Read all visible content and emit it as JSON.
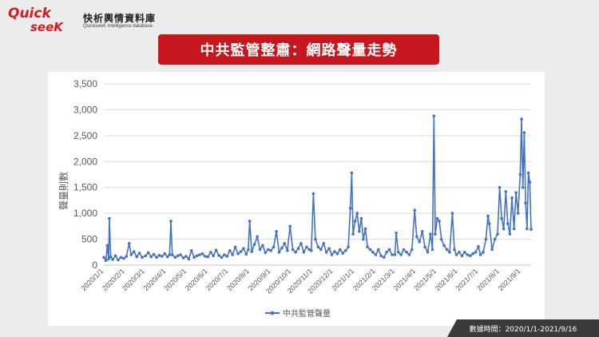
{
  "brand": {
    "logo_text_top": "Quick",
    "logo_text_bottom": "seeK",
    "name": "快析輿情資料庫",
    "subtitle": "QuickseeK intelligence database"
  },
  "title": "中共監管整肅：網路聲量走勢",
  "source": "數據時間：2020/1/1-2021/9/16",
  "colors": {
    "banner": "#c7161e",
    "series": "#4472c4",
    "logo": "#d71920"
  },
  "chart_data": {
    "type": "line",
    "title": "中共監管整肅：網路聲量走勢",
    "ylabel": "聲量則數",
    "xlabel": "",
    "ylim": [
      0,
      3500
    ],
    "y_ticks": [
      "3,500",
      "3,000",
      "2,500",
      "2,000",
      "1,500",
      "1,000",
      "500",
      "0"
    ],
    "x_tick_labels": [
      "2020/1/1",
      "2020/2/1",
      "2020/3/1",
      "2020/4/1",
      "2020/5/1",
      "2020/6/1",
      "2020/7/1",
      "2020/8/1",
      "2020/9/1",
      "2020/10/1",
      "2020/11/1",
      "2020/12/1",
      "2021/1/1",
      "2021/2/1",
      "2021/3/1",
      "2021/4/1",
      "2021/5/1",
      "2021/6/1",
      "2021/7/1",
      "2021/8/1",
      "2021/9/1"
    ],
    "x_range": [
      "2020/1/1",
      "2021/9/16"
    ],
    "grid": true,
    "legend_position": "bottom",
    "series": [
      {
        "name": "中共監管聲量",
        "points": [
          [
            "2020/1/1",
            150
          ],
          [
            "2020/1/4",
            90
          ],
          [
            "2020/1/6",
            380
          ],
          [
            "2020/1/8",
            120
          ],
          [
            "2020/1/9",
            900
          ],
          [
            "2020/1/11",
            160
          ],
          [
            "2020/1/14",
            110
          ],
          [
            "2020/1/18",
            180
          ],
          [
            "2020/1/22",
            100
          ],
          [
            "2020/1/26",
            150
          ],
          [
            "2020/1/30",
            130
          ],
          [
            "2020/2/3",
            170
          ],
          [
            "2020/2/7",
            420
          ],
          [
            "2020/2/10",
            200
          ],
          [
            "2020/2/14",
            260
          ],
          [
            "2020/2/18",
            160
          ],
          [
            "2020/2/22",
            230
          ],
          [
            "2020/2/26",
            150
          ],
          [
            "2020/3/2",
            180
          ],
          [
            "2020/3/6",
            240
          ],
          [
            "2020/3/10",
            160
          ],
          [
            "2020/3/14",
            210
          ],
          [
            "2020/3/18",
            150
          ],
          [
            "2020/3/22",
            190
          ],
          [
            "2020/3/26",
            170
          ],
          [
            "2020/3/30",
            220
          ],
          [
            "2020/4/3",
            160
          ],
          [
            "2020/4/6",
            200
          ],
          [
            "2020/4/8",
            850
          ],
          [
            "2020/4/10",
            200
          ],
          [
            "2020/4/14",
            150
          ],
          [
            "2020/4/18",
            180
          ],
          [
            "2020/4/22",
            200
          ],
          [
            "2020/4/26",
            140
          ],
          [
            "2020/4/30",
            170
          ],
          [
            "2020/5/4",
            120
          ],
          [
            "2020/5/8",
            280
          ],
          [
            "2020/5/12",
            150
          ],
          [
            "2020/5/16",
            180
          ],
          [
            "2020/5/20",
            200
          ],
          [
            "2020/5/24",
            220
          ],
          [
            "2020/5/28",
            170
          ],
          [
            "2020/6/1",
            160
          ],
          [
            "2020/6/5",
            250
          ],
          [
            "2020/6/9",
            180
          ],
          [
            "2020/6/13",
            290
          ],
          [
            "2020/6/17",
            190
          ],
          [
            "2020/6/21",
            150
          ],
          [
            "2020/6/25",
            200
          ],
          [
            "2020/6/29",
            170
          ],
          [
            "2020/7/3",
            280
          ],
          [
            "2020/7/7",
            200
          ],
          [
            "2020/7/11",
            350
          ],
          [
            "2020/7/15",
            220
          ],
          [
            "2020/7/19",
            260
          ],
          [
            "2020/7/23",
            320
          ],
          [
            "2020/7/27",
            210
          ],
          [
            "2020/7/30",
            300
          ],
          [
            "2020/8/1",
            850
          ],
          [
            "2020/8/4",
            260
          ],
          [
            "2020/8/8",
            400
          ],
          [
            "2020/8/12",
            550
          ],
          [
            "2020/8/16",
            300
          ],
          [
            "2020/8/20",
            380
          ],
          [
            "2020/8/24",
            240
          ],
          [
            "2020/8/28",
            300
          ],
          [
            "2020/9/1",
            280
          ],
          [
            "2020/9/5",
            350
          ],
          [
            "2020/9/9",
            650
          ],
          [
            "2020/9/13",
            250
          ],
          [
            "2020/9/17",
            330
          ],
          [
            "2020/9/21",
            420
          ],
          [
            "2020/9/25",
            280
          ],
          [
            "2020/9/29",
            750
          ],
          [
            "2020/10/3",
            300
          ],
          [
            "2020/10/7",
            250
          ],
          [
            "2020/10/11",
            320
          ],
          [
            "2020/10/15",
            420
          ],
          [
            "2020/10/19",
            250
          ],
          [
            "2020/10/23",
            350
          ],
          [
            "2020/10/27",
            300
          ],
          [
            "2020/10/30",
            280
          ],
          [
            "2020/11/2",
            1380
          ],
          [
            "2020/11/5",
            500
          ],
          [
            "2020/11/9",
            350
          ],
          [
            "2020/11/13",
            300
          ],
          [
            "2020/11/17",
            420
          ],
          [
            "2020/11/21",
            250
          ],
          [
            "2020/11/25",
            320
          ],
          [
            "2020/11/29",
            200
          ],
          [
            "2020/12/3",
            260
          ],
          [
            "2020/12/7",
            220
          ],
          [
            "2020/12/11",
            300
          ],
          [
            "2020/12/15",
            230
          ],
          [
            "2020/12/19",
            280
          ],
          [
            "2020/12/23",
            350
          ],
          [
            "2020/12/26",
            1100
          ],
          [
            "2020/12/28",
            1780
          ],
          [
            "2020/12/30",
            600
          ],
          [
            "2021/1/2",
            850
          ],
          [
            "2021/1/5",
            1000
          ],
          [
            "2021/1/8",
            650
          ],
          [
            "2021/1/11",
            900
          ],
          [
            "2021/1/14",
            500
          ],
          [
            "2021/1/17",
            700
          ],
          [
            "2021/1/20",
            350
          ],
          [
            "2021/1/24",
            300
          ],
          [
            "2021/1/28",
            250
          ],
          [
            "2021/2/1",
            200
          ],
          [
            "2021/2/5",
            300
          ],
          [
            "2021/2/9",
            180
          ],
          [
            "2021/2/13",
            150
          ],
          [
            "2021/2/17",
            250
          ],
          [
            "2021/2/21",
            300
          ],
          [
            "2021/2/25",
            200
          ],
          [
            "2021/3/1",
            200
          ],
          [
            "2021/3/3",
            620
          ],
          [
            "2021/3/6",
            250
          ],
          [
            "2021/3/10",
            200
          ],
          [
            "2021/3/14",
            300
          ],
          [
            "2021/3/18",
            250
          ],
          [
            "2021/3/22",
            200
          ],
          [
            "2021/3/26",
            300
          ],
          [
            "2021/3/30",
            1060
          ],
          [
            "2021/4/2",
            550
          ],
          [
            "2021/4/6",
            450
          ],
          [
            "2021/4/10",
            650
          ],
          [
            "2021/4/14",
            350
          ],
          [
            "2021/4/18",
            250
          ],
          [
            "2021/4/22",
            600
          ],
          [
            "2021/4/25",
            300
          ],
          [
            "2021/4/27",
            2880
          ],
          [
            "2021/4/29",
            600
          ],
          [
            "2021/5/2",
            900
          ],
          [
            "2021/5/5",
            850
          ],
          [
            "2021/5/8",
            500
          ],
          [
            "2021/5/12",
            380
          ],
          [
            "2021/5/16",
            300
          ],
          [
            "2021/5/20",
            250
          ],
          [
            "2021/5/24",
            1000
          ],
          [
            "2021/5/27",
            300
          ],
          [
            "2021/5/30",
            200
          ],
          [
            "2021/6/3",
            250
          ],
          [
            "2021/6/7",
            180
          ],
          [
            "2021/6/11",
            250
          ],
          [
            "2021/6/15",
            200
          ],
          [
            "2021/6/19",
            180
          ],
          [
            "2021/6/23",
            220
          ],
          [
            "2021/6/27",
            250
          ],
          [
            "2021/7/1",
            360
          ],
          [
            "2021/7/4",
            200
          ],
          [
            "2021/7/8",
            250
          ],
          [
            "2021/7/12",
            500
          ],
          [
            "2021/7/15",
            950
          ],
          [
            "2021/7/17",
            800
          ],
          [
            "2021/7/21",
            300
          ],
          [
            "2021/7/25",
            500
          ],
          [
            "2021/7/29",
            600
          ],
          [
            "2021/8/1",
            1500
          ],
          [
            "2021/8/4",
            900
          ],
          [
            "2021/8/7",
            700
          ],
          [
            "2021/8/10",
            1420
          ],
          [
            "2021/8/13",
            800
          ],
          [
            "2021/8/16",
            600
          ],
          [
            "2021/8/19",
            1300
          ],
          [
            "2021/8/22",
            700
          ],
          [
            "2021/8/25",
            1400
          ],
          [
            "2021/8/28",
            1000
          ],
          [
            "2021/8/31",
            1750
          ],
          [
            "2021/9/2",
            2820
          ],
          [
            "2021/9/4",
            1500
          ],
          [
            "2021/9/6",
            2560
          ],
          [
            "2021/9/8",
            1200
          ],
          [
            "2021/9/10",
            700
          ],
          [
            "2021/9/12",
            1780
          ],
          [
            "2021/9/14",
            1600
          ],
          [
            "2021/9/16",
            690
          ]
        ]
      }
    ]
  }
}
